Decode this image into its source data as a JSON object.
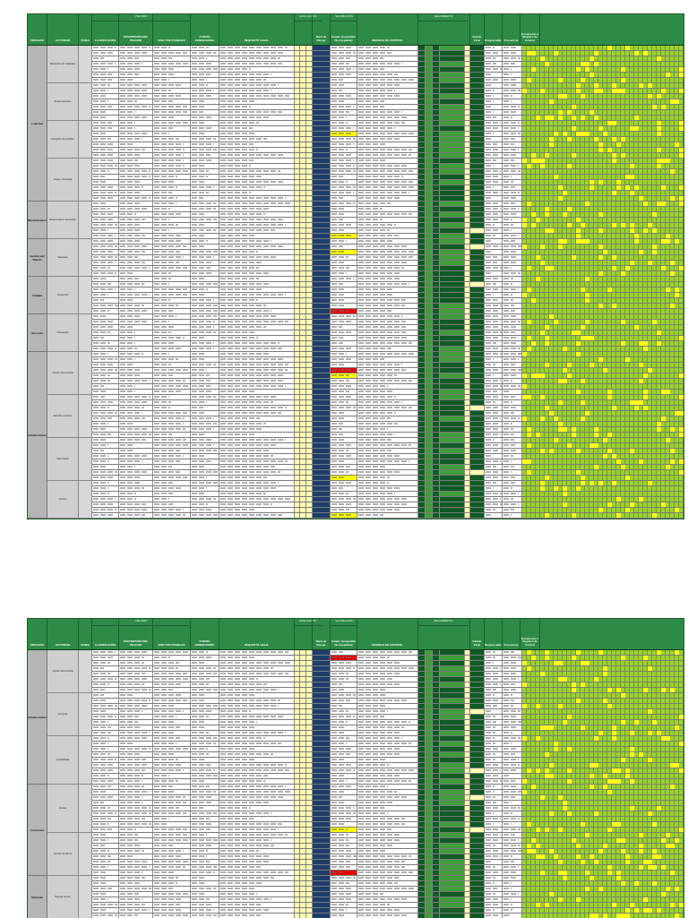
{
  "sheet_header": {
    "proceso": "PROCESO",
    "actividad": "ACTIVIDAD",
    "tarea": "TAREA",
    "peligro_group": "PELIGRO",
    "clasificacion": "CLASIFICACIÓN",
    "descripcion": "DESCRIPCIÓN DEL PELIGRO",
    "efectos": "EFECTOS POSIBLES",
    "fuente": "FUENTE GENERADORA",
    "requisito": "REQUISITO LEGAL",
    "evaluacion_group": "EVALUACIÓN",
    "valoracion_group": "VALORACIÓN",
    "nivel_riesgo": "Nivel de Riesgo",
    "estado": "Estado (Aceptable/ No Aceptable)",
    "medidas": "MEDIDAS DE CONTROL",
    "seguimiento_group": "SEGUIMIENTO",
    "estado_final": "Estado Final",
    "responsable": "Responsable",
    "frecuencia": "Frecuencia",
    "documento": "Documento o Registro de Control"
  },
  "processes_sheet1": [
    {
      "name": "Logística",
      "activities": [
        "Recepción de materiales",
        "Almacenamiento",
        "Despacho de pedidos",
        "Carga y descarga"
      ]
    },
    {
      "name": "Mantenimiento",
      "activities": [
        "Mantenimiento preventivo"
      ]
    },
    {
      "name": "Gestión del Talento",
      "activities": [
        "Selección"
      ]
    },
    {
      "name": "Calidad",
      "activities": [
        "Inspección"
      ]
    },
    {
      "name": "Gerencia",
      "activities": [
        "Planeación"
      ]
    },
    {
      "name": "Administrativo",
      "activities": [
        "Gestión documental",
        "Atención al cliente",
        "Facturación",
        "Archivo"
      ]
    }
  ],
  "processes_sheet2": [
    {
      "name": "Administrativo",
      "activities": [
        "Gestión documental",
        "Compras",
        "Contabilidad"
      ]
    },
    {
      "name": "Comercial",
      "activities": [
        "Ventas",
        "Servicio al cliente"
      ]
    },
    {
      "name": "Sistemas",
      "activities": [
        "Soporte técnico"
      ]
    }
  ],
  "colors": {
    "header_green": "#2e8b47",
    "process_gray": "#b5b5b5",
    "highlight_yellow": "#ffff00",
    "risk_dark_blue": "#1f3d6b",
    "risk_red": "#e60000",
    "heatmap_green": "#9fcf32"
  }
}
